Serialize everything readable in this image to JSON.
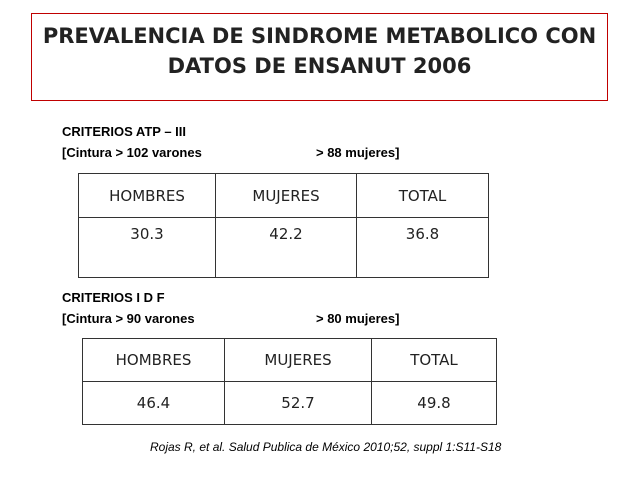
{
  "title": {
    "line1": "PREVALENCIA DE SINDROME METABOLICO CON",
    "line2": "DATOS DE ENSANUT 2006"
  },
  "section1": {
    "heading": "CRITERIOS  ATP – III",
    "men": "[Cintura  > 102 varones",
    "women": "> 88 mujeres]",
    "headers": [
      "HOMBRES",
      "MUJERES",
      "TOTAL"
    ],
    "values": [
      "30.3",
      "42.2",
      "36.8"
    ]
  },
  "section2": {
    "heading": "CRITERIOS  I D F",
    "men": "[Cintura  > 90 varones",
    "women": "> 80 mujeres]",
    "headers": [
      "HOMBRES",
      "MUJERES",
      "TOTAL"
    ],
    "values": [
      "46.4",
      "52.7",
      "49.8"
    ]
  },
  "citation": "Rojas R, et al. Salud Publica de México 2010;52, suppl 1:S11-S18"
}
